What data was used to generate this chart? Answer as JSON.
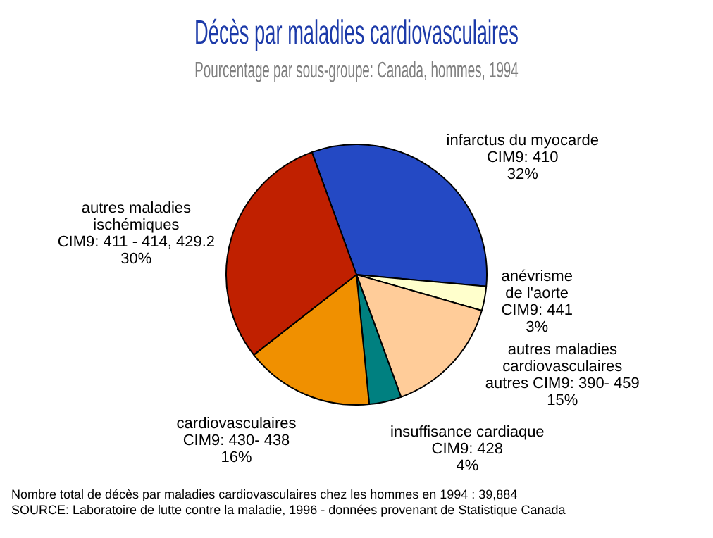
{
  "chart_data": {
    "type": "pie",
    "title": "Décès par maladies cardiovasculaires",
    "subtitle": "Pourcentage par sous-groupe: Canada, hommes, 1994",
    "categories": [
      "infarctus du myocarde\nCIM9: 410",
      "anévrisme\nde l'aorte\nCIM9: 441",
      "autres maladies\ncardiovasculaires\nautres CIM9: 390- 459",
      "insuffisance cardiaque\nCIM9: 428",
      "cardiovasculaires\nCIM9: 430- 438",
      "autres maladies\nischémiques\nCIM9: 411 - 414, 429.2"
    ],
    "values": [
      32,
      3,
      15,
      4,
      16,
      30
    ],
    "value_labels": [
      "32%",
      "3%",
      "15%",
      "4%",
      "16%",
      "30%"
    ],
    "colors": [
      "#2449c4",
      "#ffffcc",
      "#ffcc99",
      "#008080",
      "#f09000",
      "#c02000"
    ],
    "legend": false,
    "annotations": [
      "Nombre total de décès par maladies cardiovasculaires chez les hommes en 1994 : 39,884",
      "SOURCE: Laboratoire de lutte contre la maladie, 1996 - données provenant de Statistique Canada"
    ]
  }
}
